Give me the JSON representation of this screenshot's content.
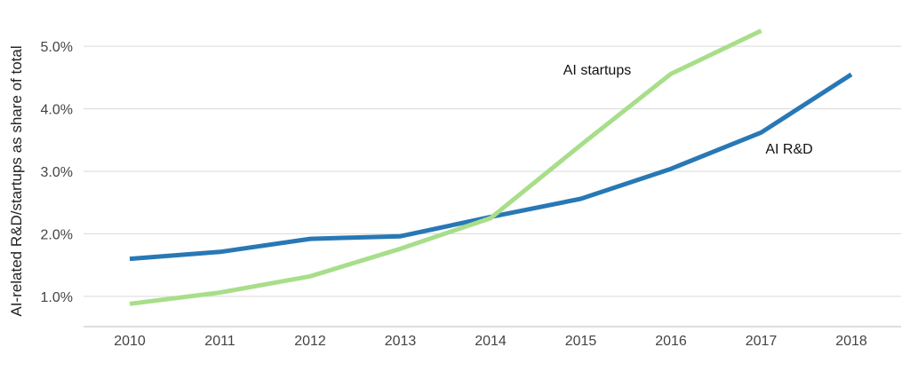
{
  "chart_data": {
    "type": "line",
    "title": "",
    "xlabel": "",
    "ylabel": "AI-related R&D/startups as share of total",
    "x": [
      "2010",
      "2011",
      "2012",
      "2013",
      "2014",
      "2015",
      "2016",
      "2017",
      "2018"
    ],
    "ylim": [
      0.6,
      5.4
    ],
    "yticks": [
      1.0,
      2.0,
      3.0,
      4.0,
      5.0
    ],
    "ytick_labels": [
      "1.0%",
      "2.0%",
      "3.0%",
      "4.0%",
      "5.0%"
    ],
    "grid": true,
    "legend": "none (inline labels)",
    "series": [
      {
        "name": "AI R&D",
        "color": "#2878b5",
        "values": [
          1.6,
          1.71,
          1.92,
          1.96,
          2.27,
          2.56,
          3.04,
          3.62,
          4.55
        ]
      },
      {
        "name": "AI startups",
        "color": "#a8de8a",
        "values": [
          0.88,
          1.06,
          1.32,
          1.76,
          2.25,
          3.42,
          4.56,
          5.25,
          null
        ]
      }
    ]
  }
}
